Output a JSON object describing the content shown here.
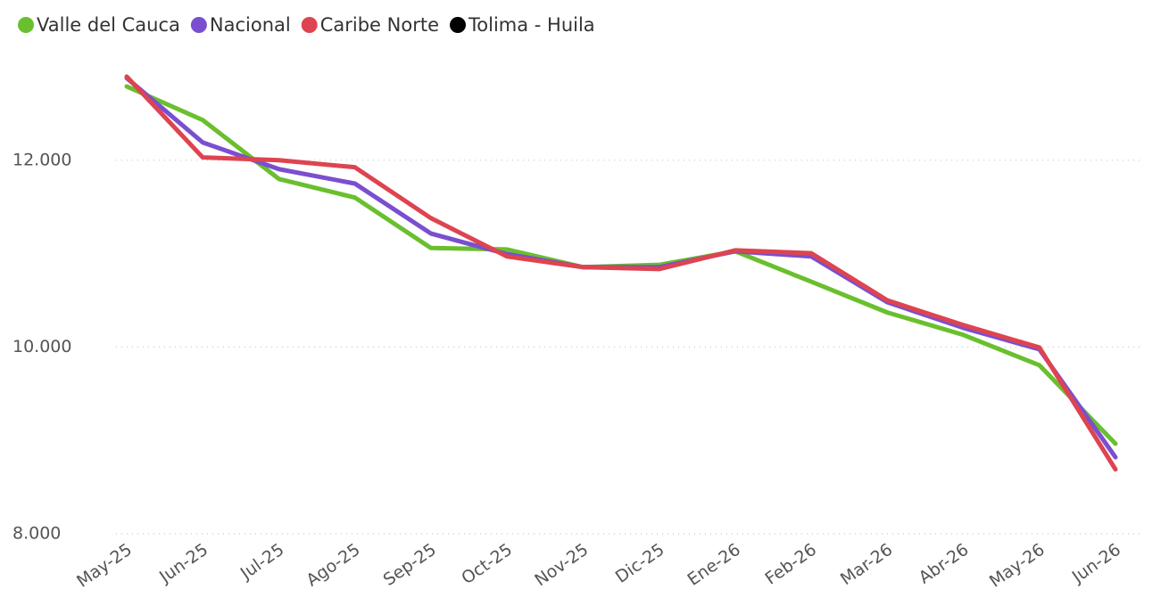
{
  "chart_data": {
    "type": "line",
    "categories": [
      "May-25",
      "Jun-25",
      "Jul-25",
      "Ago-25",
      "Sep-25",
      "Oct-25",
      "Nov-25",
      "Dic-25",
      "Ene-26",
      "Feb-26",
      "Mar-26",
      "Abr-26",
      "May-26",
      "Jun-26"
    ],
    "series": [
      {
        "name": "Valle del Cauca",
        "color": "#6abf2e",
        "values": [
          12790,
          12430,
          11800,
          11600,
          11060,
          11045,
          10855,
          10880,
          11025,
          10700,
          10370,
          10130,
          9805,
          8965
        ]
      },
      {
        "name": "Nacional",
        "color": "#7a4fcf",
        "values": [
          12880,
          12190,
          11905,
          11750,
          11215,
          10995,
          10855,
          10855,
          11025,
          10970,
          10480,
          10205,
          9975,
          8820
        ]
      },
      {
        "name": "Caribe Norte",
        "color": "#de4450",
        "values": [
          12895,
          12030,
          12000,
          11925,
          11380,
          10970,
          10855,
          10835,
          11035,
          11005,
          10500,
          10235,
          9995,
          8690
        ]
      },
      {
        "name": "Tolima - Huila",
        "color": "#000000",
        "values": [
          null,
          null,
          null,
          null,
          null,
          null,
          null,
          null,
          null,
          null,
          null,
          null,
          null,
          null
        ]
      }
    ],
    "ylim": [
      8000,
      13000
    ],
    "yticks": [
      {
        "value": 8000,
        "label": "8.000"
      },
      {
        "value": 10000,
        "label": "10.000"
      },
      {
        "value": 12000,
        "label": "12.000"
      }
    ],
    "grid": true
  }
}
